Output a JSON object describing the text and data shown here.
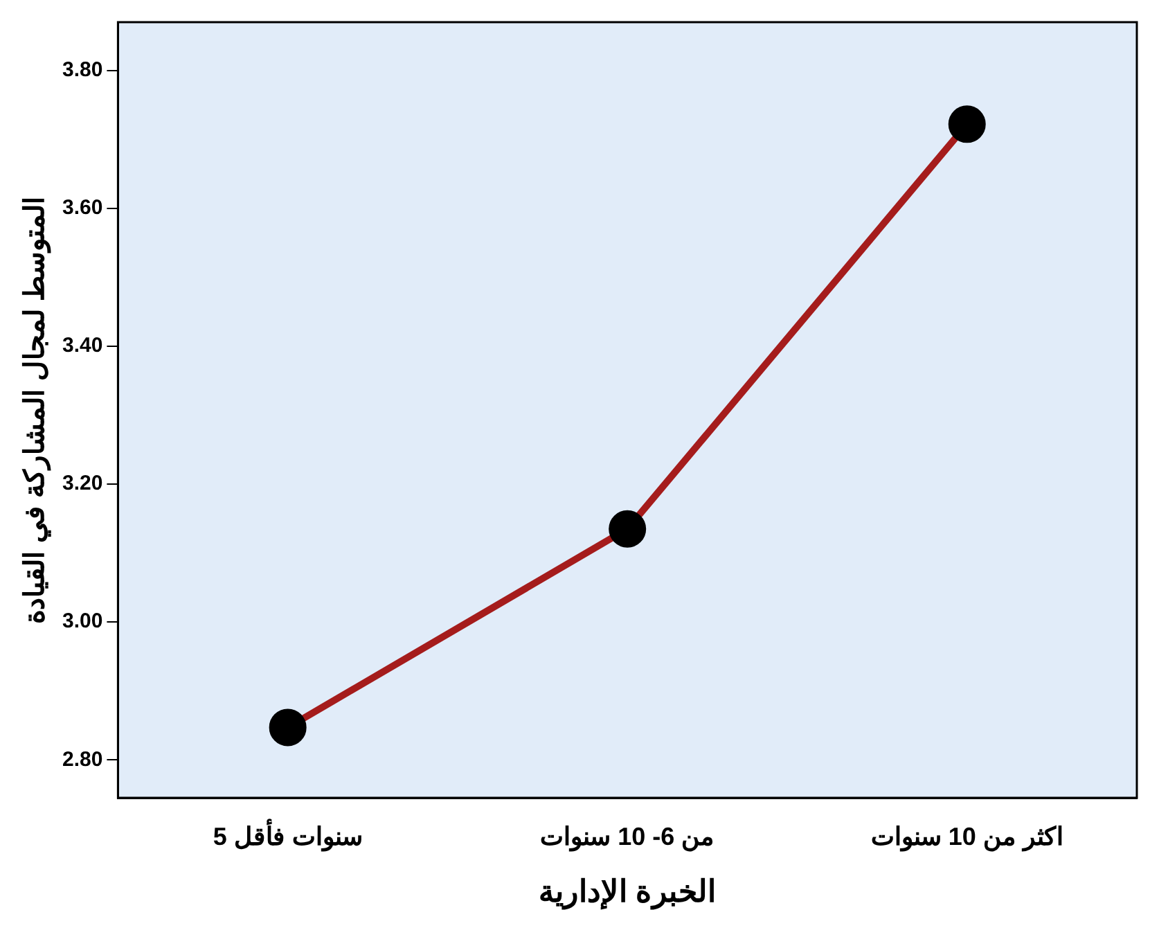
{
  "chart_data": {
    "type": "line",
    "xlabel": "الخبرة الإدارية",
    "ylabel": "المتوسط لمجال المشاركة في القيادة",
    "categories": [
      "5 سنوات فأقل",
      "من 6- 10 سنوات",
      "اكثر من 10 سنوات"
    ],
    "series": [
      {
        "color": "#a51c1c",
        "values": [
          2.847,
          3.135,
          3.722
        ]
      }
    ],
    "ylim": [
      2.745,
      3.87
    ],
    "yticks": [
      {
        "value": 2.8,
        "label": "2.80"
      },
      {
        "value": 3.0,
        "label": "3.00"
      },
      {
        "value": 3.2,
        "label": "3.20"
      },
      {
        "value": 3.4,
        "label": "3.40"
      },
      {
        "value": 3.6,
        "label": "3.60"
      },
      {
        "value": 3.8,
        "label": "3.80"
      }
    ],
    "grid": false,
    "legend": false,
    "marker": "circle",
    "line_style": "solid"
  }
}
